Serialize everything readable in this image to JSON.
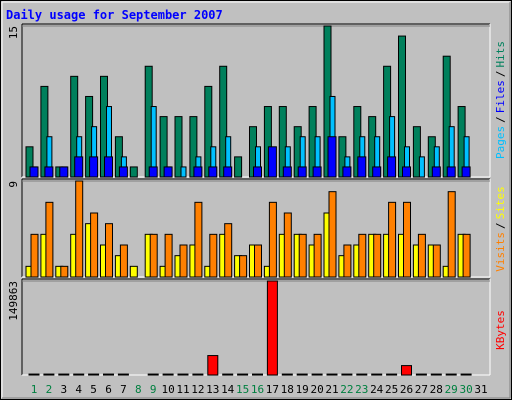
{
  "chart_data": [
    {
      "type": "bar",
      "title": "Daily usage for September 2007",
      "ylim": [
        0,
        15
      ],
      "yticks": [
        15
      ],
      "legend_separator": "/",
      "series": [
        {
          "name": "Hits",
          "color": "#00805c",
          "values": [
            3,
            9,
            1,
            10,
            8,
            10,
            4,
            1,
            11,
            6,
            6,
            6,
            9,
            11,
            2,
            5,
            7,
            7,
            5,
            7,
            15,
            4,
            7,
            6,
            11,
            14,
            5,
            4,
            12,
            7,
            0
          ]
        },
        {
          "name": "Files",
          "color": "#0000ff",
          "values": [
            1,
            1,
            1,
            2,
            2,
            2,
            1,
            0,
            1,
            1,
            0,
            1,
            1,
            1,
            0,
            1,
            3,
            1,
            1,
            1,
            4,
            1,
            2,
            1,
            2,
            1,
            0,
            1,
            1,
            1,
            0
          ]
        },
        {
          "name": "Pages",
          "color": "#00c0ff",
          "values": [
            1,
            4,
            1,
            4,
            5,
            7,
            2,
            0,
            7,
            1,
            1,
            2,
            3,
            4,
            0,
            3,
            1,
            3,
            4,
            4,
            8,
            2,
            4,
            4,
            6,
            3,
            2,
            3,
            5,
            4,
            0
          ]
        }
      ]
    },
    {
      "type": "bar",
      "ylim": [
        0,
        9
      ],
      "yticks": [
        9
      ],
      "legend_separator": "/",
      "series": [
        {
          "name": "Sites",
          "color": "#ffff00",
          "values": [
            1,
            4,
            1,
            4,
            5,
            3,
            2,
            1,
            4,
            1,
            2,
            3,
            1,
            4,
            2,
            3,
            1,
            4,
            4,
            3,
            6,
            2,
            3,
            4,
            4,
            4,
            3,
            3,
            1,
            4,
            0
          ]
        },
        {
          "name": "Visits",
          "color": "#ff8000",
          "values": [
            4,
            7,
            1,
            9,
            6,
            5,
            3,
            0,
            4,
            4,
            3,
            7,
            4,
            5,
            2,
            3,
            7,
            6,
            4,
            4,
            8,
            3,
            4,
            4,
            7,
            7,
            4,
            3,
            8,
            4,
            0
          ]
        }
      ]
    },
    {
      "type": "bar",
      "ylim": [
        0,
        149863
      ],
      "yticks": [
        149863
      ],
      "categories": [
        "1",
        "2",
        "3",
        "4",
        "5",
        "6",
        "7",
        "8",
        "9",
        "10",
        "11",
        "12",
        "13",
        "14",
        "15",
        "16",
        "17",
        "18",
        "19",
        "20",
        "21",
        "22",
        "23",
        "24",
        "25",
        "26",
        "27",
        "28",
        "29",
        "30",
        "31"
      ],
      "category_colors": [
        "#008040",
        "#008040",
        "#000000",
        "#000000",
        "#000000",
        "#000000",
        "#000000",
        "#008040",
        "#008040",
        "#000000",
        "#000000",
        "#000000",
        "#000000",
        "#000000",
        "#008040",
        "#008040",
        "#000000",
        "#000000",
        "#000000",
        "#000000",
        "#000000",
        "#008040",
        "#008040",
        "#000000",
        "#000000",
        "#000000",
        "#000000",
        "#000000",
        "#008040",
        "#008040",
        "#000000"
      ],
      "series": [
        {
          "name": "KBytes",
          "color": "#ff0000",
          "values": [
            1500,
            1500,
            1500,
            1500,
            1500,
            1500,
            1500,
            0,
            1500,
            1500,
            1500,
            1500,
            31000,
            1500,
            1500,
            1500,
            149863,
            1500,
            1500,
            1500,
            1500,
            1500,
            1500,
            1500,
            1500,
            15000,
            1500,
            1500,
            1500,
            1500,
            0
          ]
        }
      ]
    }
  ]
}
